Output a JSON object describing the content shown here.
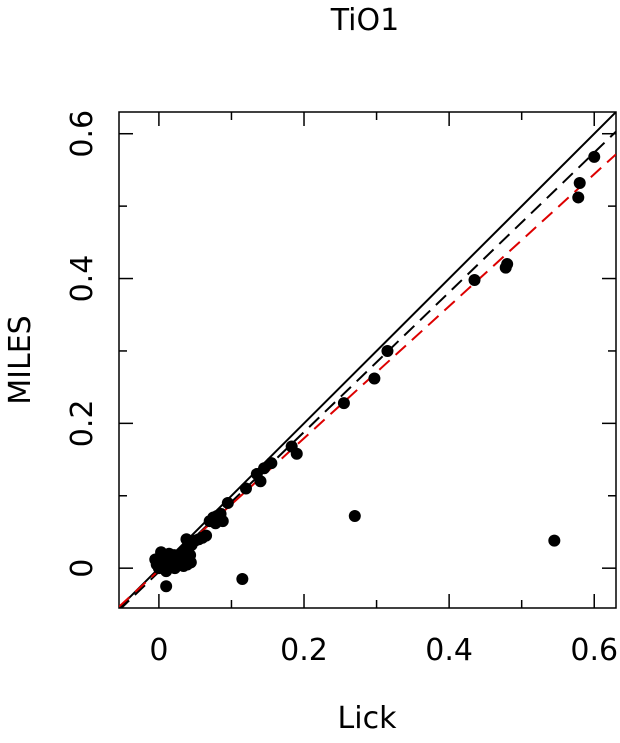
{
  "chart_data": {
    "type": "scatter",
    "title": "TiO1",
    "xlabel": "Lick",
    "ylabel": "MILES",
    "xlim": [
      -0.055,
      0.63
    ],
    "ylim": [
      -0.055,
      0.63
    ],
    "xticks": [
      0,
      0.2,
      0.4,
      0.6
    ],
    "xtick_labels": [
      "0",
      "0.2",
      "0.4",
      "0.6"
    ],
    "yticks": [
      0,
      0.2,
      0.4,
      0.6
    ],
    "ytick_labels": [
      "0",
      "0.2",
      "0.4",
      "0.6"
    ],
    "minor_step": 0.1,
    "grid": false,
    "colors": {
      "points": "#000000",
      "identity": "#000000",
      "fit_black": "#000000",
      "fit_red": "#dd0000"
    },
    "lines": [
      {
        "style": "solid",
        "color": "#000000",
        "slope": 1.0,
        "intercept": 0.0
      },
      {
        "style": "dashed",
        "color": "#000000",
        "slope": 0.965,
        "intercept": -0.005
      },
      {
        "style": "dashed",
        "color": "#dd0000",
        "slope": 0.912,
        "intercept": -0.003
      }
    ],
    "points": [
      [
        -0.005,
        0.012
      ],
      [
        -0.003,
        0.005
      ],
      [
        0.0,
        0.0
      ],
      [
        0.002,
        0.008
      ],
      [
        0.003,
        0.022
      ],
      [
        0.005,
        0.015
      ],
      [
        0.006,
        0.003
      ],
      [
        0.008,
        0.01
      ],
      [
        0.009,
        0.018
      ],
      [
        0.01,
        -0.004
      ],
      [
        0.011,
        0.005
      ],
      [
        0.012,
        0.012
      ],
      [
        0.013,
        0.0
      ],
      [
        0.014,
        0.02
      ],
      [
        0.015,
        0.008
      ],
      [
        0.016,
        0.015
      ],
      [
        0.018,
        0.003
      ],
      [
        0.019,
        0.012
      ],
      [
        0.02,
        0.006
      ],
      [
        0.021,
        0.018
      ],
      [
        0.022,
        0.0
      ],
      [
        0.023,
        0.01
      ],
      [
        0.025,
        0.015
      ],
      [
        0.026,
        0.004
      ],
      [
        0.028,
        0.012
      ],
      [
        0.03,
        0.02
      ],
      [
        0.032,
        0.008
      ],
      [
        0.034,
        0.003
      ],
      [
        0.035,
        0.015
      ],
      [
        0.037,
        0.025
      ],
      [
        0.038,
        0.04
      ],
      [
        0.039,
        0.005
      ],
      [
        0.04,
        0.028
      ],
      [
        0.042,
        0.035
      ],
      [
        0.043,
        0.018
      ],
      [
        0.044,
        0.008
      ],
      [
        0.045,
        0.032
      ],
      [
        0.05,
        0.038
      ],
      [
        0.055,
        0.04
      ],
      [
        0.06,
        0.042
      ],
      [
        0.065,
        0.045
      ],
      [
        0.07,
        0.065
      ],
      [
        0.075,
        0.07
      ],
      [
        0.078,
        0.062
      ],
      [
        0.08,
        0.072
      ],
      [
        0.085,
        0.075
      ],
      [
        0.088,
        0.065
      ],
      [
        0.095,
        0.09
      ],
      [
        0.12,
        0.11
      ],
      [
        0.135,
        0.13
      ],
      [
        0.14,
        0.12
      ],
      [
        0.145,
        0.138
      ],
      [
        0.155,
        0.145
      ],
      [
        0.183,
        0.168
      ],
      [
        0.19,
        0.158
      ],
      [
        0.255,
        0.228
      ],
      [
        0.27,
        0.072
      ],
      [
        0.297,
        0.262
      ],
      [
        0.315,
        0.3
      ],
      [
        0.435,
        0.398
      ],
      [
        0.478,
        0.415
      ],
      [
        0.48,
        0.42
      ],
      [
        0.545,
        0.038
      ],
      [
        0.578,
        0.512
      ],
      [
        0.58,
        0.532
      ],
      [
        0.6,
        0.568
      ],
      [
        0.115,
        -0.015
      ],
      [
        0.01,
        -0.025
      ]
    ]
  }
}
